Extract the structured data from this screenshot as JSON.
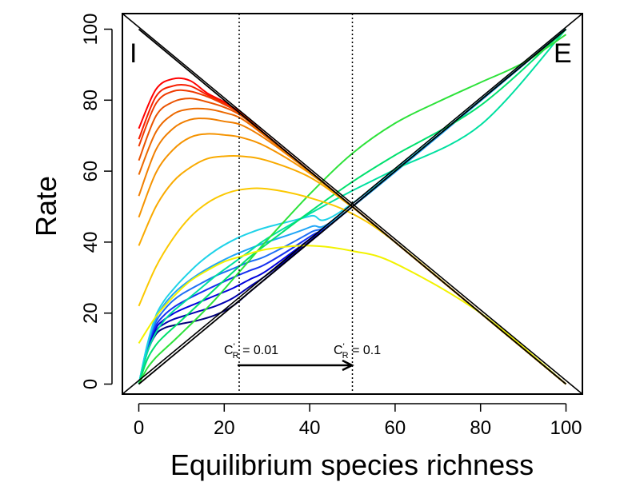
{
  "chart_data": {
    "type": "line",
    "title": "",
    "xlabel": "Equilibrium species richness",
    "ylabel": "Rate",
    "xlim": [
      -3.5,
      104.2
    ],
    "ylim": [
      -3.7,
      104.0
    ],
    "xticks": [
      "0",
      "20",
      "40",
      "60",
      "80",
      "100"
    ],
    "yticks": [
      "0",
      "20",
      "40",
      "60",
      "80",
      "100"
    ],
    "grid": false,
    "legend": "none",
    "corner_labels": {
      "immigration": "I",
      "extinction": "E"
    },
    "reference_lines": [
      {
        "label": "C'R = 0.01",
        "x": 23.5,
        "style": "dotted"
      },
      {
        "label": "C'R = 0.1",
        "x": 50,
        "style": "dotted"
      }
    ],
    "annotations": {
      "c_r_low": {
        "C": "C",
        "sup": "'",
        "sub": "R",
        "value": " = 0.01",
        "x": 20.5,
        "y": 9.5
      },
      "c_r_high": {
        "C": "C",
        "sup": "'",
        "sub": "R",
        "value": " = 0.1",
        "x": 46.8,
        "y": 9.5
      },
      "arrow": {
        "from": [
          23.5,
          5
        ],
        "to": [
          50,
          5
        ]
      }
    },
    "straight_lines": [
      {
        "name": "immigration",
        "x": [
          0,
          100
        ],
        "y": [
          100,
          0
        ],
        "color": "#000000"
      },
      {
        "name": "extinction",
        "x": [
          0,
          100
        ],
        "y": [
          0,
          100
        ],
        "color": "#000000"
      }
    ],
    "immigration_series": [
      {
        "color": "#ff0000",
        "x": [
          0,
          4,
          8,
          12,
          16,
          20,
          24,
          30,
          40,
          50,
          60,
          80,
          100
        ],
        "y": [
          72,
          83,
          86,
          85.5,
          82,
          79.5,
          76.3,
          70,
          60,
          50,
          40,
          20,
          0
        ]
      },
      {
        "color": "#f71e00",
        "x": [
          0,
          4,
          8,
          12,
          16,
          20,
          24,
          30,
          40,
          50,
          60,
          80,
          100
        ],
        "y": [
          69,
          81,
          84,
          84,
          81.5,
          79.2,
          76.2,
          70,
          60,
          50,
          40,
          20,
          0
        ]
      },
      {
        "color": "#ef3a00",
        "x": [
          0,
          4,
          8,
          12,
          16,
          20,
          24,
          30,
          40,
          50,
          60,
          80,
          100
        ],
        "y": [
          67,
          79,
          82.5,
          82.5,
          81,
          78.8,
          76,
          70,
          60,
          50,
          40,
          20,
          0
        ]
      },
      {
        "color": "#ea5200",
        "x": [
          0,
          4,
          8,
          12,
          16,
          20,
          24,
          30,
          40,
          50,
          60,
          80,
          100
        ],
        "y": [
          63,
          75.5,
          79.5,
          80.5,
          79.5,
          78,
          75.6,
          69.8,
          60,
          50,
          40,
          20,
          0
        ]
      },
      {
        "color": "#ec6900",
        "x": [
          0,
          4,
          8,
          12,
          16,
          20,
          24,
          30,
          40,
          50,
          60,
          80,
          100
        ],
        "y": [
          59,
          71,
          76,
          77.5,
          77.5,
          76.5,
          74.8,
          69.5,
          59.9,
          50,
          40,
          20,
          0
        ]
      },
      {
        "color": "#f07e00",
        "x": [
          0,
          4,
          8,
          12,
          16,
          20,
          24,
          30,
          40,
          50,
          60,
          80,
          100
        ],
        "y": [
          53,
          66,
          72,
          74.5,
          74.8,
          74,
          73,
          68.8,
          59.8,
          50,
          40,
          20,
          0
        ]
      },
      {
        "color": "#f59300",
        "x": [
          0,
          4,
          8,
          12,
          16,
          20,
          24,
          30,
          40,
          50,
          60,
          80,
          100
        ],
        "y": [
          47,
          59.5,
          66,
          69.5,
          70.5,
          70.2,
          69.5,
          66.8,
          59.4,
          50,
          40,
          20,
          0
        ]
      },
      {
        "color": "#f9aa00",
        "x": [
          0,
          4,
          8,
          12,
          16,
          20,
          24,
          30,
          40,
          50,
          60,
          80,
          100
        ],
        "y": [
          39,
          50,
          57,
          61,
          63.5,
          64.2,
          64.2,
          63,
          58.3,
          49.8,
          40,
          20,
          0
        ]
      },
      {
        "color": "#fbc800",
        "x": [
          0,
          4,
          8,
          12,
          16,
          20,
          24,
          30,
          40,
          50,
          60,
          80,
          100
        ],
        "y": [
          22,
          33,
          41,
          47,
          51,
          53.5,
          54.8,
          55,
          52.5,
          48,
          40,
          20,
          0
        ]
      },
      {
        "color": "#f2f200",
        "x": [
          0,
          4,
          8,
          12,
          16,
          20,
          24,
          30,
          40,
          50,
          60,
          80,
          100
        ],
        "y": [
          11.5,
          19,
          24.5,
          29,
          32,
          34.5,
          36,
          38,
          39,
          37.5,
          34,
          20,
          0
        ]
      }
    ],
    "extinction_series": [
      {
        "color": "#00007a",
        "x": [
          0,
          2,
          4,
          6,
          8,
          10,
          14,
          18,
          22,
          26,
          30,
          40,
          50,
          100
        ],
        "y": [
          0,
          9,
          14,
          15.8,
          16.5,
          17,
          18,
          19.5,
          22,
          26,
          30,
          40,
          50,
          100
        ]
      },
      {
        "color": "#0000b0",
        "x": [
          0,
          2,
          4,
          6,
          8,
          10,
          14,
          18,
          22,
          26,
          30,
          40,
          50,
          100
        ],
        "y": [
          0,
          9.5,
          15,
          17,
          18.2,
          19,
          20.5,
          22,
          24.2,
          27.5,
          30.8,
          40.2,
          50,
          100
        ]
      },
      {
        "color": "#0000dd",
        "x": [
          0,
          2,
          4,
          6,
          8,
          10,
          14,
          18,
          22,
          26,
          30,
          40,
          50,
          100
        ],
        "y": [
          0,
          10,
          15.8,
          18.2,
          19.8,
          21,
          23,
          25,
          27,
          29.5,
          32,
          40.8,
          50,
          100
        ]
      },
      {
        "color": "#1530f0",
        "x": [
          0,
          2,
          4,
          6,
          8,
          10,
          14,
          18,
          22,
          26,
          30,
          40,
          50,
          100
        ],
        "y": [
          0,
          10.3,
          16.5,
          19.5,
          21.5,
          23,
          25.5,
          27.8,
          30,
          32,
          34,
          41.5,
          50,
          100
        ]
      },
      {
        "color": "#1e6ef5",
        "x": [
          0,
          2,
          4,
          6,
          8,
          10,
          14,
          18,
          22,
          26,
          30,
          40,
          50,
          100
        ],
        "y": [
          0,
          10.6,
          17.5,
          21,
          23.5,
          25.3,
          28,
          30.5,
          32.5,
          34.5,
          36.2,
          42.6,
          50,
          100
        ]
      },
      {
        "color": "#1fa5f7",
        "x": [
          0,
          2,
          4,
          6,
          8,
          10,
          14,
          18,
          22,
          26,
          30,
          40,
          50,
          100
        ],
        "y": [
          0,
          11,
          18.5,
          22.5,
          25.3,
          27.5,
          31,
          33.8,
          36.2,
          38.2,
          40,
          44.2,
          50,
          100
        ]
      },
      {
        "color": "#1ed2e8",
        "x": [
          0,
          2,
          4,
          6,
          8,
          10,
          14,
          18,
          22,
          26,
          30,
          40,
          50,
          100
        ],
        "y": [
          0,
          11.2,
          19.3,
          23.6,
          26.6,
          29.3,
          34,
          37.7,
          40.5,
          42.6,
          44.2,
          47.3,
          50.9,
          100
        ]
      },
      {
        "color": "#00e0a0",
        "x": [
          0,
          2,
          4,
          6,
          8,
          10,
          14,
          18,
          22,
          26,
          30,
          40,
          50,
          60,
          80,
          100
        ],
        "y": [
          0,
          9,
          14.5,
          18,
          20.5,
          22.5,
          26.5,
          30.5,
          34,
          37.5,
          41,
          48,
          54.5,
          60.5,
          73,
          100
        ]
      },
      {
        "color": "#00e06e",
        "x": [
          0,
          2,
          4,
          6,
          8,
          10,
          14,
          18,
          22,
          26,
          30,
          40,
          50,
          60,
          80,
          100
        ],
        "y": [
          0,
          7,
          11,
          13.6,
          15.8,
          18,
          22.5,
          27,
          31.5,
          35.8,
          39.5,
          48.5,
          57,
          64.5,
          78.5,
          100
        ]
      },
      {
        "color": "#2de23a",
        "x": [
          0,
          2,
          4,
          6,
          8,
          10,
          14,
          18,
          22,
          26,
          30,
          40,
          50,
          60,
          70,
          80,
          90,
          100
        ],
        "y": [
          0,
          4.5,
          7.5,
          9.8,
          12,
          14.3,
          19,
          24,
          29.5,
          35,
          40.5,
          53.5,
          65,
          73.5,
          79.5,
          85,
          90.5,
          98.5
        ]
      }
    ]
  }
}
